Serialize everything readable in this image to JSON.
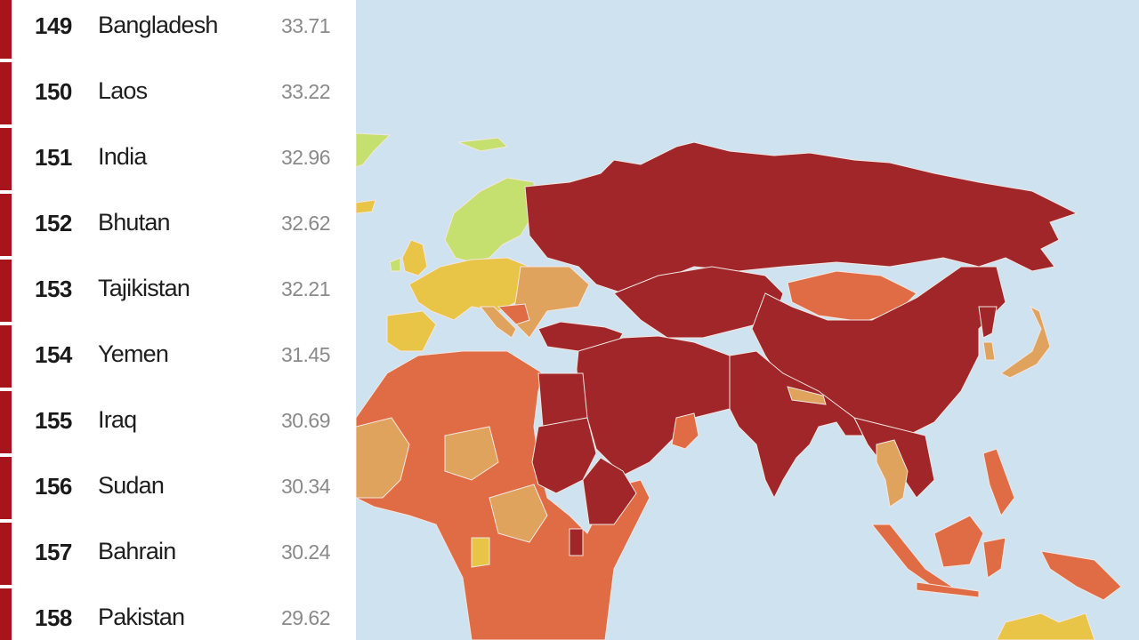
{
  "ranking": [
    {
      "rank": "149",
      "country": "Bangladesh",
      "score": "33.71"
    },
    {
      "rank": "150",
      "country": "Laos",
      "score": "33.22"
    },
    {
      "rank": "151",
      "country": "India",
      "score": "32.96"
    },
    {
      "rank": "152",
      "country": "Bhutan",
      "score": "32.62"
    },
    {
      "rank": "153",
      "country": "Tajikistan",
      "score": "32.21"
    },
    {
      "rank": "154",
      "country": "Yemen",
      "score": "31.45"
    },
    {
      "rank": "155",
      "country": "Iraq",
      "score": "30.69"
    },
    {
      "rank": "156",
      "country": "Sudan",
      "score": "30.34"
    },
    {
      "rank": "157",
      "country": "Bahrain",
      "score": "30.24"
    },
    {
      "rank": "158",
      "country": "Pakistan",
      "score": "29.62"
    }
  ],
  "map": {
    "ocean_color": "#cfe2ef",
    "category_colors": {
      "very_serious": "#a1262a",
      "difficult": "#e06c45",
      "problematic": "#e0a35e",
      "satisfactory": "#e8c447",
      "good": "#c5e06e"
    },
    "row_marker_color": "#a8141c"
  }
}
